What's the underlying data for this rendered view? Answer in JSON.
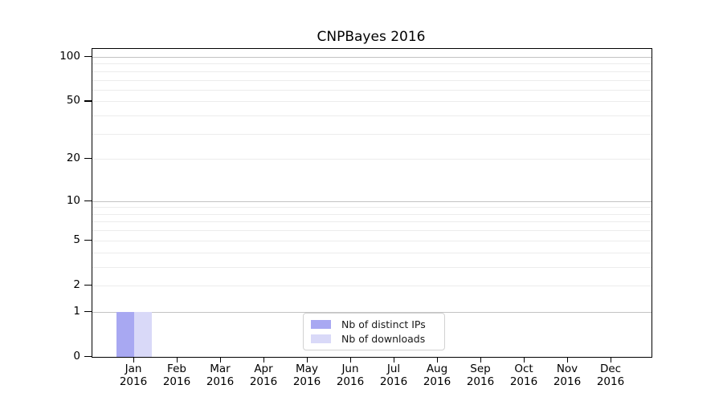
{
  "chart_data": {
    "type": "bar",
    "title": "CNPBayes 2016",
    "categories": [
      "Jan 2016",
      "Feb 2016",
      "Mar 2016",
      "Apr 2016",
      "May 2016",
      "Jun 2016",
      "Jul 2016",
      "Aug 2016",
      "Sep 2016",
      "Oct 2016",
      "Nov 2016",
      "Dec 2016"
    ],
    "series": [
      {
        "name": "Nb of distinct IPs",
        "color": "#a8a8f2",
        "values": [
          1,
          0,
          0,
          0,
          0,
          0,
          0,
          0,
          0,
          0,
          0,
          0
        ]
      },
      {
        "name": "Nb of downloads",
        "color": "#d9d9f8",
        "values": [
          1,
          0,
          0,
          0,
          0,
          0,
          0,
          0,
          0,
          0,
          0,
          0
        ]
      }
    ],
    "xlabel": "",
    "ylabel": "",
    "y_scale": "log1p",
    "ylim": [
      0,
      111
    ],
    "y_major_ticks": [
      0,
      1,
      2,
      5,
      10,
      20,
      50,
      100
    ],
    "grid": {
      "major_values": [
        1,
        10,
        100
      ],
      "minor_values": [
        2,
        3,
        4,
        5,
        6,
        7,
        8,
        9,
        20,
        30,
        40,
        50,
        60,
        70,
        80,
        90
      ],
      "major_color": "#c3c3c3",
      "minor_color": "#ececec"
    },
    "legend": {
      "position": "bottom-center",
      "entries": [
        "Nb of distinct IPs",
        "Nb of downloads"
      ]
    },
    "axis_color": "#000000"
  }
}
